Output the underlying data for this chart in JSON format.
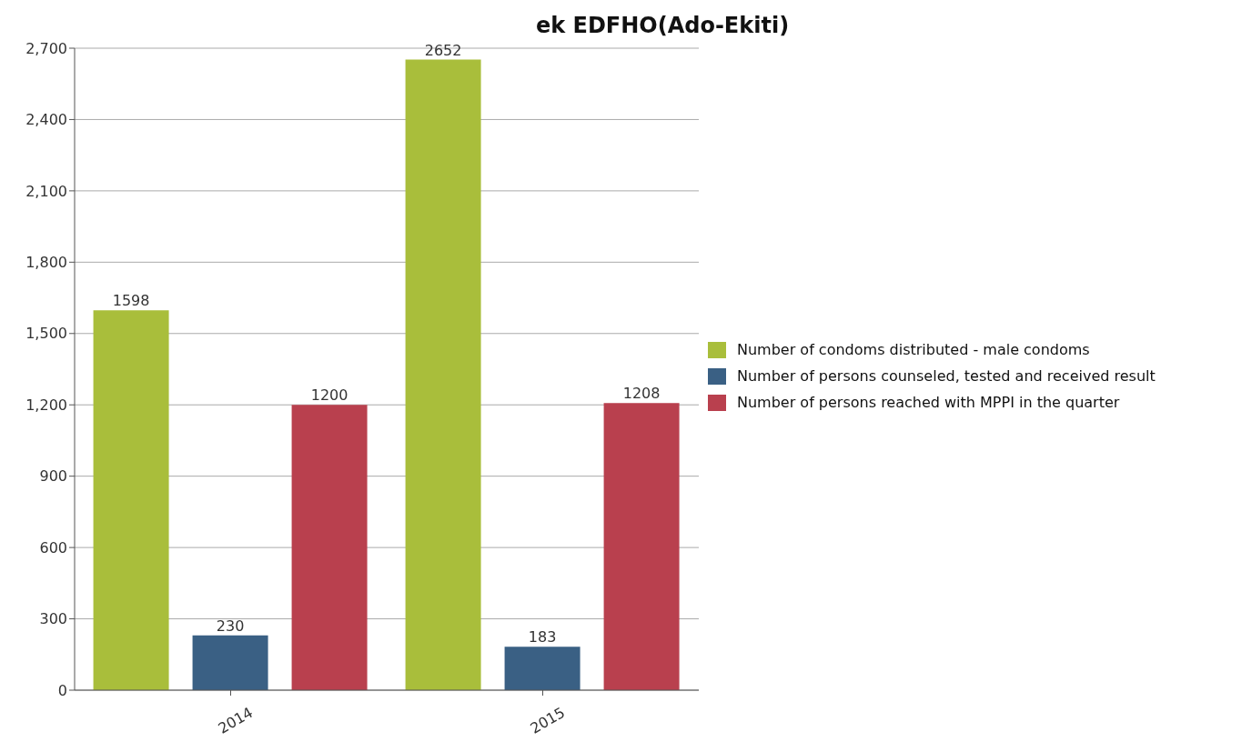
{
  "chart_data": {
    "type": "bar",
    "title": "ek EDFHO(Ado-Ekiti)",
    "categories": [
      "2014",
      "2015"
    ],
    "series": [
      {
        "name": "Number of condoms distributed - male condoms",
        "color": "#a9be3b",
        "values": [
          1598,
          2652
        ]
      },
      {
        "name": "Number of persons counseled, tested and received result",
        "color": "#3a6084",
        "values": [
          230,
          183
        ]
      },
      {
        "name": "Number of persons reached with MPPI in the quarter",
        "color": "#b9404e",
        "values": [
          1200,
          1208
        ]
      }
    ],
    "ylim": [
      0,
      2700
    ],
    "yticks": [
      0,
      300,
      600,
      900,
      {
        "value": 1200,
        "label": "1,200"
      },
      {
        "value": 1500,
        "label": "1,500"
      },
      {
        "value": 1800,
        "label": "1,800"
      },
      {
        "value": 2100,
        "label": "2,100"
      },
      {
        "value": 2400,
        "label": "2,400"
      },
      {
        "value": 2700,
        "label": "2,700"
      }
    ],
    "grid": "y",
    "legend": "right",
    "data_labels": true
  }
}
